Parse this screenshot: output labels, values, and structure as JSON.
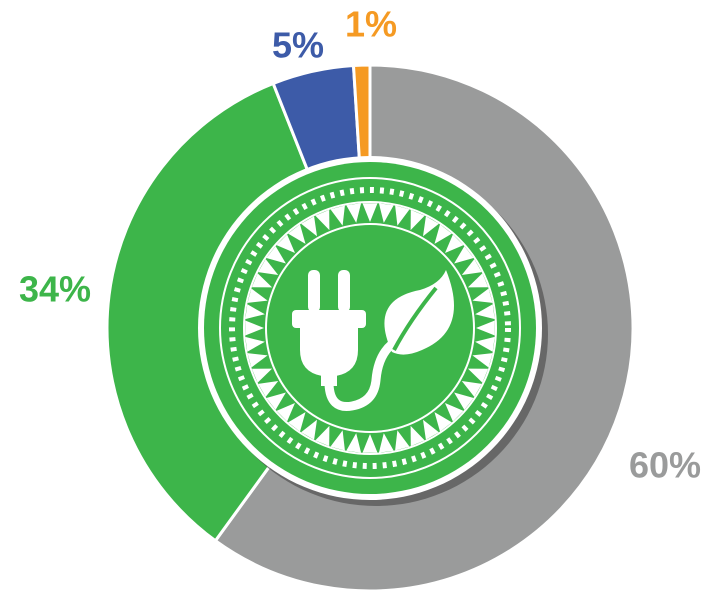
{
  "chart_data": {
    "type": "donut",
    "values": [
      60,
      34,
      5,
      1
    ],
    "value_labels": [
      "60%",
      "34%",
      "5%",
      "1%"
    ],
    "colors": [
      "#9a9b9b",
      "#3db54a",
      "#3d5ba8",
      "#f59a23"
    ]
  }
}
